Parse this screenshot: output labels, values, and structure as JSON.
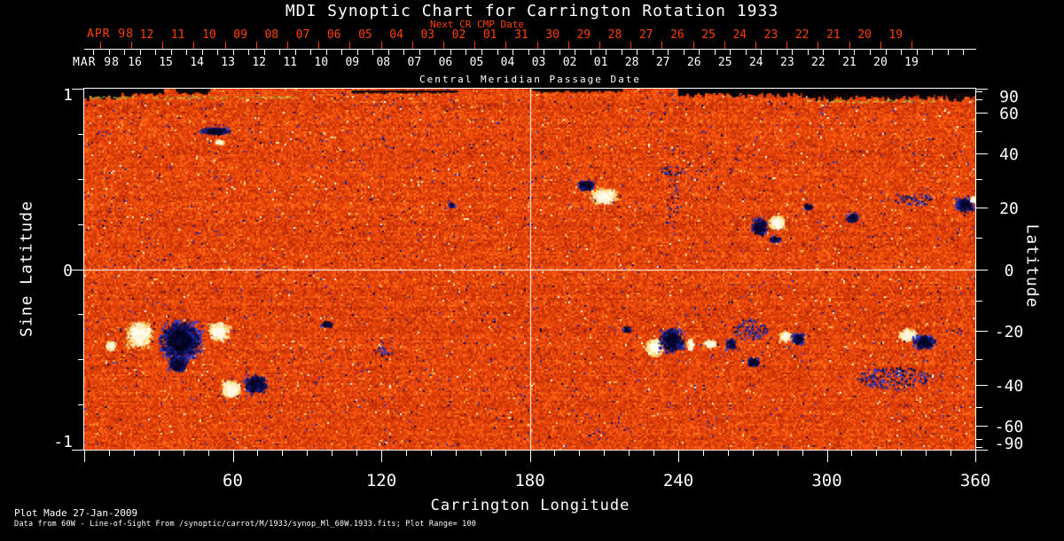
{
  "title": "MDI Synoptic Chart for Carrington Rotation 1933",
  "subtitle_red": "Next CR CMP Date",
  "next_cr_axis": {
    "month": "APR 98",
    "days": [
      "12",
      "11",
      "10",
      "09",
      "08",
      "07",
      "06",
      "05",
      "04",
      "03",
      "02",
      "01",
      "31",
      "30",
      "29",
      "28",
      "27",
      "26",
      "25",
      "24",
      "23",
      "22",
      "21",
      "20",
      "19"
    ]
  },
  "cmp_axis": {
    "month": "MAR 98",
    "title": "Central Meridian Passage Date",
    "days": [
      "16",
      "15",
      "14",
      "13",
      "12",
      "11",
      "10",
      "09",
      "08",
      "07",
      "06",
      "05",
      "04",
      "03",
      "02",
      "01",
      "28",
      "27",
      "26",
      "25",
      "24",
      "23",
      "22",
      "21",
      "20",
      "19"
    ]
  },
  "footer": {
    "line1": "Plot Made 27-Jan-2009",
    "line2": "Data from 60W - Line-of-Sight From /synoptic/carrot/M/1933/synop_Ml_60W.1933.fits; Plot Range=  100"
  },
  "colors": {
    "background": "#000000",
    "text": "#ffffff",
    "accent_red": "#ff4000",
    "frame": "#ffffff",
    "grid": "#ffffff",
    "base_orange": "#e24408",
    "positive_polarity": "#ffffff",
    "positive_fringe": "#ffc050",
    "negative_polarity": "#05051e",
    "negative_fringe": "#3138c0"
  },
  "chart_data": {
    "type": "heatmap",
    "title": "MDI Synoptic Chart for Carrington Rotation 1933",
    "description": "Solar line-of-sight magnetic field synoptic map; orange/red speckle background, white = positive flux, black/blue = negative flux",
    "plot_range_gauss": 100,
    "x_axis": {
      "label": "Carrington Longitude",
      "range": [
        0,
        360
      ],
      "major_ticks": [
        60,
        120,
        180,
        240,
        300,
        360
      ],
      "minor_step": 10
    },
    "y_left": {
      "label": "Sine Latitude",
      "range": [
        -1,
        1
      ],
      "major_ticks": [
        1,
        0,
        -1
      ],
      "minor_step": 0.25
    },
    "y_right": {
      "label": "Latitude",
      "major_ticks": [
        90,
        60,
        40,
        20,
        0,
        -20,
        -40,
        -60,
        -90
      ],
      "minor_step_deg": 10
    },
    "grid_lines": {
      "vertical_lon": 180,
      "horizontal_sine_lat": 0
    },
    "active_regions": [
      {
        "lon": 52.5,
        "sine_lat": 0.77,
        "polarity": "negative",
        "w_deg": 15,
        "h_sine": 0.05
      },
      {
        "lon": 54.5,
        "sine_lat": 0.71,
        "polarity": "positive",
        "w_deg": 4,
        "h_sine": 0.03
      },
      {
        "lon": 148,
        "sine_lat": 0.36,
        "polarity": "negative",
        "w_deg": 3,
        "h_sine": 0.03
      },
      {
        "lon": 202.5,
        "sine_lat": 0.47,
        "polarity": "negative",
        "w_deg": 8,
        "h_sine": 0.07
      },
      {
        "lon": 209.5,
        "sine_lat": 0.41,
        "polarity": "positive",
        "w_deg": 13,
        "h_sine": 0.1
      },
      {
        "lon": 237.5,
        "sine_lat": 0.55,
        "polarity": "negative_speckle",
        "w_deg": 10,
        "h_sine": 0.05
      },
      {
        "lon": 237.5,
        "sine_lat": 0.42,
        "polarity": "negative_speckle",
        "w_deg": 5,
        "h_sine": 0.5,
        "density": 0.12
      },
      {
        "lon": 272.5,
        "sine_lat": 0.24,
        "polarity": "negative",
        "w_deg": 7,
        "h_sine": 0.12
      },
      {
        "lon": 279.5,
        "sine_lat": 0.26,
        "polarity": "positive",
        "w_deg": 8,
        "h_sine": 0.1
      },
      {
        "lon": 279,
        "sine_lat": 0.17,
        "polarity": "negative",
        "w_deg": 6,
        "h_sine": 0.04
      },
      {
        "lon": 292,
        "sine_lat": 0.35,
        "polarity": "negative",
        "w_deg": 4,
        "h_sine": 0.04
      },
      {
        "lon": 310,
        "sine_lat": 0.29,
        "polarity": "negative",
        "w_deg": 6,
        "h_sine": 0.06
      },
      {
        "lon": 335,
        "sine_lat": 0.39,
        "polarity": "negative_speckle",
        "w_deg": 16,
        "h_sine": 0.07,
        "density": 0.5
      },
      {
        "lon": 355.5,
        "sine_lat": 0.36,
        "polarity": "negative",
        "w_deg": 9,
        "h_sine": 0.09
      },
      {
        "lon": 359,
        "sine_lat": 0.39,
        "polarity": "positive",
        "w_deg": 3,
        "h_sine": 0.04
      },
      {
        "lon": 22,
        "sine_lat": -0.36,
        "polarity": "positive",
        "w_deg": 12,
        "h_sine": 0.17
      },
      {
        "lon": 38.5,
        "sine_lat": -0.39,
        "polarity": "negative",
        "w_deg": 20,
        "h_sine": 0.25
      },
      {
        "lon": 54,
        "sine_lat": -0.34,
        "polarity": "positive",
        "w_deg": 10,
        "h_sine": 0.12
      },
      {
        "lon": 37.5,
        "sine_lat": -0.52,
        "polarity": "negative",
        "w_deg": 10,
        "h_sine": 0.1
      },
      {
        "lon": 10.5,
        "sine_lat": -0.42,
        "polarity": "positive",
        "w_deg": 5,
        "h_sine": 0.06
      },
      {
        "lon": 59,
        "sine_lat": -0.66,
        "polarity": "positive",
        "w_deg": 9,
        "h_sine": 0.12
      },
      {
        "lon": 69,
        "sine_lat": -0.63,
        "polarity": "negative",
        "w_deg": 11,
        "h_sine": 0.12
      },
      {
        "lon": 98,
        "sine_lat": -0.3,
        "polarity": "negative",
        "w_deg": 6,
        "h_sine": 0.04
      },
      {
        "lon": 120.5,
        "sine_lat": -0.45,
        "polarity": "negative_speckle",
        "w_deg": 8,
        "h_sine": 0.05
      },
      {
        "lon": 219,
        "sine_lat": -0.33,
        "polarity": "negative",
        "w_deg": 4,
        "h_sine": 0.04
      },
      {
        "lon": 230,
        "sine_lat": -0.43,
        "polarity": "positive",
        "w_deg": 9,
        "h_sine": 0.11
      },
      {
        "lon": 237,
        "sine_lat": -0.39,
        "polarity": "negative",
        "w_deg": 12,
        "h_sine": 0.16
      },
      {
        "lon": 244.5,
        "sine_lat": -0.41,
        "polarity": "positive",
        "w_deg": 3,
        "h_sine": 0.08
      },
      {
        "lon": 252.5,
        "sine_lat": -0.41,
        "polarity": "positive",
        "w_deg": 6,
        "h_sine": 0.06
      },
      {
        "lon": 261,
        "sine_lat": -0.41,
        "polarity": "negative",
        "w_deg": 5,
        "h_sine": 0.07
      },
      {
        "lon": 270,
        "sine_lat": -0.51,
        "polarity": "negative",
        "w_deg": 6,
        "h_sine": 0.06
      },
      {
        "lon": 269,
        "sine_lat": -0.33,
        "polarity": "negative_speckle",
        "w_deg": 14,
        "h_sine": 0.12,
        "density": 0.5
      },
      {
        "lon": 283,
        "sine_lat": -0.37,
        "polarity": "positive",
        "w_deg": 6,
        "h_sine": 0.08
      },
      {
        "lon": 288,
        "sine_lat": -0.38,
        "polarity": "negative",
        "w_deg": 6,
        "h_sine": 0.08
      },
      {
        "lon": 332.5,
        "sine_lat": -0.36,
        "polarity": "positive",
        "w_deg": 10,
        "h_sine": 0.08
      },
      {
        "lon": 339,
        "sine_lat": -0.4,
        "polarity": "negative",
        "w_deg": 11,
        "h_sine": 0.09
      },
      {
        "lon": 327,
        "sine_lat": -0.6,
        "polarity": "negative_speckle",
        "w_deg": 30,
        "h_sine": 0.12
      }
    ],
    "polar_gaps": [
      {
        "lon_range": [
          0,
          14
        ],
        "sine_lat_range": [
          0.93,
          1.0
        ]
      },
      {
        "lon_range": [
          0,
          32
        ],
        "sine_lat_range": [
          0.95,
          1.0
        ]
      },
      {
        "lon_range": [
          37,
          50
        ],
        "sine_lat_range": [
          0.965,
          1.0
        ]
      },
      {
        "lon_range": [
          108,
          150
        ],
        "sine_lat_range": [
          0.97,
          0.99
        ]
      },
      {
        "lon_range": [
          181,
          217
        ],
        "sine_lat_range": [
          0.975,
          1.0
        ]
      },
      {
        "lon_range": [
          240,
          360
        ],
        "sine_lat_range": [
          0.95,
          1.0
        ]
      },
      {
        "lon_range": [
          290,
          360
        ],
        "sine_lat_range": [
          0.925,
          1.0
        ]
      }
    ],
    "polar_streaks": [
      {
        "lon_range": [
          2,
          85
        ],
        "sine_lat": 0.955
      },
      {
        "lon_range": [
          292,
          344
        ],
        "sine_lat": 0.935
      }
    ]
  }
}
